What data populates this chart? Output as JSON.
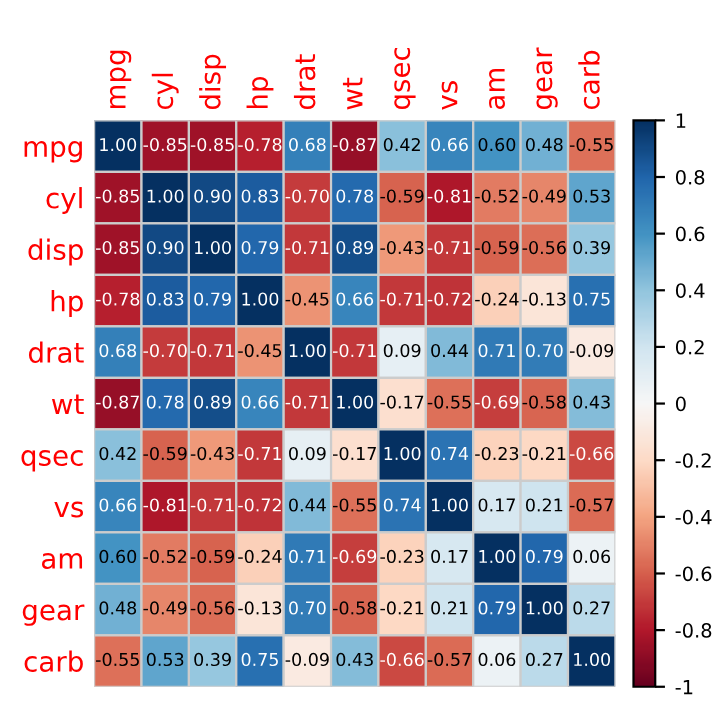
{
  "chart_data": {
    "type": "heatmap",
    "categories": [
      "mpg",
      "cyl",
      "disp",
      "hp",
      "drat",
      "wt",
      "qsec",
      "vs",
      "am",
      "gear",
      "carb"
    ],
    "y_categories": [
      "mpg",
      "cyl",
      "disp",
      "hp",
      "drat",
      "wt",
      "qsec",
      "vs",
      "am",
      "gear",
      "carb"
    ],
    "cells": [
      [
        1.0,
        -0.85,
        -0.85,
        -0.78,
        0.68,
        -0.87,
        0.42,
        0.66,
        0.6,
        0.48,
        -0.55
      ],
      [
        -0.85,
        1.0,
        0.9,
        0.83,
        -0.7,
        0.78,
        -0.59,
        -0.81,
        -0.52,
        -0.49,
        0.53
      ],
      [
        -0.85,
        0.9,
        1.0,
        0.79,
        -0.71,
        0.89,
        -0.43,
        -0.71,
        -0.59,
        -0.56,
        0.39
      ],
      [
        -0.78,
        0.83,
        0.79,
        1.0,
        -0.45,
        0.66,
        -0.71,
        -0.72,
        -0.24,
        -0.13,
        0.75
      ],
      [
        0.68,
        -0.7,
        -0.71,
        -0.45,
        1.0,
        -0.71,
        0.09,
        0.44,
        0.71,
        0.7,
        -0.09
      ],
      [
        -0.87,
        0.78,
        0.89,
        0.66,
        -0.71,
        1.0,
        -0.17,
        -0.55,
        -0.69,
        -0.58,
        0.43
      ],
      [
        0.42,
        -0.59,
        -0.43,
        -0.71,
        0.09,
        -0.17,
        1.0,
        0.74,
        -0.23,
        -0.21,
        -0.66
      ],
      [
        0.66,
        -0.81,
        -0.71,
        -0.72,
        0.44,
        -0.55,
        0.74,
        1.0,
        0.17,
        0.21,
        -0.57
      ],
      [
        0.6,
        -0.52,
        -0.59,
        -0.24,
        0.71,
        -0.69,
        -0.23,
        0.17,
        1.0,
        0.79,
        0.06
      ],
      [
        0.48,
        -0.49,
        -0.56,
        -0.13,
        0.7,
        -0.58,
        -0.21,
        0.21,
        0.79,
        1.0,
        0.27
      ],
      [
        -0.55,
        0.53,
        0.39,
        0.75,
        -0.09,
        0.43,
        -0.66,
        -0.57,
        0.06,
        0.27,
        1.0
      ]
    ],
    "cell_labels": [
      [
        "1.00",
        "-0.85",
        "-0.85",
        "-0.78",
        "0.68",
        "-0.87",
        "0.42",
        "0.66",
        "0.60",
        "0.48",
        "-0.55"
      ],
      [
        "-0.85",
        "1.00",
        "0.90",
        "0.83",
        "-0.70",
        "0.78",
        "-0.59",
        "-0.81",
        "-0.52",
        "-0.49",
        "0.53"
      ],
      [
        "-0.85",
        "0.90",
        "1.00",
        "0.79",
        "-0.71",
        "0.89",
        "-0.43",
        "-0.71",
        "-0.59",
        "-0.56",
        "0.39"
      ],
      [
        "-0.78",
        "0.83",
        "0.79",
        "1.00",
        "-0.45",
        "0.66",
        "-0.71",
        "-0.72",
        "-0.24",
        "-0.13",
        "0.75"
      ],
      [
        "0.68",
        "-0.70",
        "-0.71",
        "-0.45",
        "1.00",
        "-0.71",
        "0.09",
        "0.44",
        "0.71",
        "0.70",
        "-0.09"
      ],
      [
        "-0.87",
        "0.78",
        "0.89",
        "0.66",
        "-0.71",
        "1.00",
        "-0.17",
        "-0.55",
        "-0.69",
        "-0.58",
        "0.43"
      ],
      [
        "0.42",
        "-0.59",
        "-0.43",
        "-0.71",
        "0.09",
        "-0.17",
        "1.00",
        "0.74",
        "-0.23",
        "-0.21",
        "-0.66"
      ],
      [
        "0.66",
        "-0.81",
        "-0.71",
        "-0.72",
        "0.44",
        "-0.55",
        "0.74",
        "1.00",
        "0.17",
        "0.21",
        "-0.57"
      ],
      [
        "0.60",
        "-0.52",
        "-0.59",
        "-0.24",
        "0.71",
        "-0.69",
        "-0.23",
        "0.17",
        "1.00",
        "0.79",
        "0.06"
      ],
      [
        "0.48",
        "-0.49",
        "-0.56",
        "-0.13",
        "0.70",
        "-0.58",
        "-0.21",
        "0.21",
        "0.79",
        "1.00",
        "0.27"
      ],
      [
        "-0.55",
        "0.53",
        "0.39",
        "0.75",
        "-0.09",
        "0.43",
        "-0.66",
        "-0.57",
        "0.06",
        "0.27",
        "1.00"
      ]
    ],
    "clim": [
      -1,
      1
    ],
    "cticks": [
      -1,
      -0.8,
      -0.6,
      -0.4,
      -0.2,
      0,
      0.2,
      0.4,
      0.6,
      0.8,
      1
    ]
  }
}
